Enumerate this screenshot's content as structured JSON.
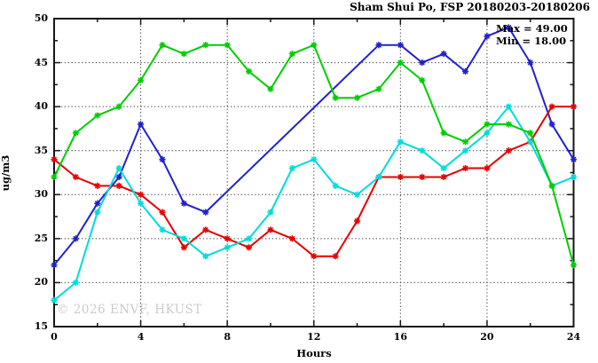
{
  "title": "Sham Shui Po, FSP 20180203-20180206",
  "legend": {
    "max_label": "Max = 49.00",
    "min_label": "Min = 18.00"
  },
  "watermark": "© 2026 ENVF, HKUST",
  "chart_data": {
    "type": "line",
    "title": "Sham Shui Po, FSP 20180203-20180206",
    "xlabel": "Hours",
    "ylabel": "ug/m3",
    "xlim": [
      0,
      24
    ],
    "ylim": [
      15,
      50
    ],
    "x_major_ticks": [
      0,
      4,
      8,
      12,
      16,
      20,
      24
    ],
    "x_minor_ticks": [
      2,
      6,
      10,
      14,
      18,
      22
    ],
    "y_major_ticks": [
      15,
      20,
      25,
      30,
      35,
      40,
      45,
      50
    ],
    "y_minor_ticks": [
      17.5,
      22.5,
      27.5,
      32.5,
      37.5,
      42.5,
      47.5
    ],
    "grid": "dotted-at-major-ticks",
    "legend_position": "top-right-inside",
    "stats": {
      "max": 49.0,
      "min": 18.0
    },
    "series": [
      {
        "name": "blue",
        "color": "#2121cd",
        "marker": "star",
        "points": [
          [
            0,
            22
          ],
          [
            1,
            25
          ],
          [
            2,
            29
          ],
          [
            3,
            32
          ],
          [
            4,
            38
          ],
          [
            5,
            34
          ],
          [
            6,
            29
          ],
          [
            7,
            28
          ],
          [
            15,
            47
          ],
          [
            16,
            47
          ],
          [
            17,
            45
          ],
          [
            18,
            46
          ],
          [
            19,
            44
          ],
          [
            20,
            48
          ],
          [
            21,
            49
          ],
          [
            22,
            45
          ],
          [
            23,
            38
          ],
          [
            24,
            34
          ]
        ]
      },
      {
        "name": "red",
        "color": "#e60000",
        "marker": "star",
        "points": [
          [
            0,
            34
          ],
          [
            1,
            32
          ],
          [
            2,
            31
          ],
          [
            3,
            31
          ],
          [
            4,
            30
          ],
          [
            5,
            28
          ],
          [
            6,
            24
          ],
          [
            7,
            26
          ],
          [
            8,
            25
          ],
          [
            9,
            24
          ],
          [
            10,
            26
          ],
          [
            11,
            25
          ],
          [
            12,
            23
          ],
          [
            13,
            23
          ],
          [
            14,
            27
          ],
          [
            15,
            32
          ],
          [
            16,
            32
          ],
          [
            17,
            32
          ],
          [
            18,
            32
          ],
          [
            19,
            33
          ],
          [
            20,
            33
          ],
          [
            21,
            35
          ],
          [
            22,
            36
          ],
          [
            23,
            40
          ],
          [
            24,
            40
          ]
        ]
      },
      {
        "name": "cyan",
        "color": "#00dbdb",
        "marker": "star",
        "points": [
          [
            0,
            18
          ],
          [
            1,
            20
          ],
          [
            2,
            28
          ],
          [
            3,
            33
          ],
          [
            4,
            29
          ],
          [
            5,
            26
          ],
          [
            6,
            25
          ],
          [
            7,
            23
          ],
          [
            8,
            24
          ],
          [
            9,
            25
          ],
          [
            10,
            28
          ],
          [
            11,
            33
          ],
          [
            12,
            34
          ],
          [
            13,
            31
          ],
          [
            14,
            30
          ],
          [
            15,
            32
          ],
          [
            16,
            36
          ],
          [
            17,
            35
          ],
          [
            18,
            33
          ],
          [
            19,
            35
          ],
          [
            20,
            37
          ],
          [
            21,
            40
          ],
          [
            22,
            36
          ],
          [
            23,
            31
          ],
          [
            24,
            32
          ]
        ]
      },
      {
        "name": "green",
        "color": "#00cd00",
        "marker": "star",
        "points": [
          [
            0,
            32
          ],
          [
            1,
            37
          ],
          [
            2,
            39
          ],
          [
            3,
            40
          ],
          [
            4,
            43
          ],
          [
            5,
            47
          ],
          [
            6,
            46
          ],
          [
            7,
            47
          ],
          [
            8,
            47
          ],
          [
            9,
            44
          ],
          [
            10,
            42
          ],
          [
            11,
            46
          ],
          [
            12,
            47
          ],
          [
            13,
            41
          ],
          [
            14,
            41
          ],
          [
            15,
            42
          ],
          [
            16,
            45
          ],
          [
            17,
            43
          ],
          [
            18,
            37
          ],
          [
            19,
            36
          ],
          [
            20,
            38
          ],
          [
            21,
            38
          ],
          [
            22,
            37
          ],
          [
            23,
            31
          ],
          [
            24,
            22
          ]
        ]
      }
    ]
  }
}
